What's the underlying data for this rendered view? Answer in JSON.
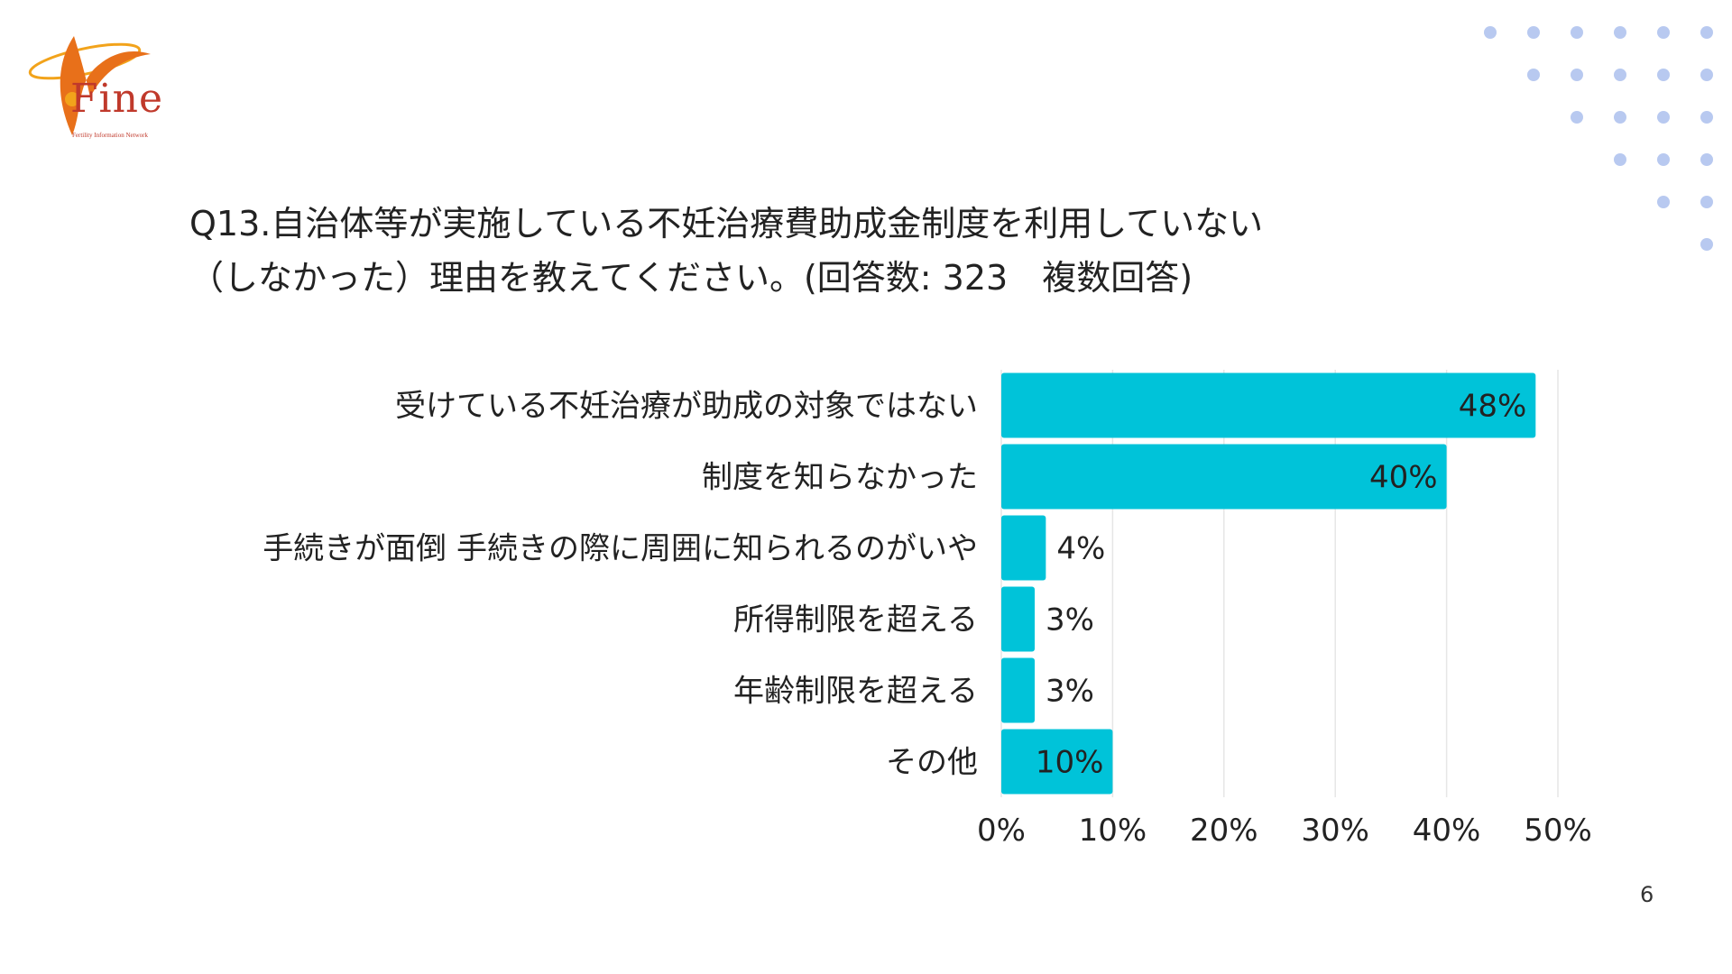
{
  "logo": {
    "text": "Fine",
    "subtext": "Fertility Information Network"
  },
  "title": {
    "line1": "Q13.自治体等が実施している不妊治療費助成金制度を利用していない",
    "line2": "（しなかった）理由を教えてください。(回答数: 323　複数回答)"
  },
  "page_number": "6",
  "colors": {
    "bar": "#00c3d9",
    "grid": "#e6e6e6",
    "dots": "#b8c9f0",
    "logo": "#e8701a"
  },
  "chart_data": {
    "type": "bar",
    "orientation": "horizontal",
    "categories": [
      "受けている不妊治療が助成の対象ではない",
      "制度を知らなかった",
      "手続きが面倒 手続きの際に周囲に知られるのがいや",
      "所得制限を超える",
      "年齢制限を超える",
      "その他"
    ],
    "values": [
      48,
      40,
      4,
      3,
      3,
      10
    ],
    "labels": [
      "48%",
      "40%",
      "4%",
      "3%",
      "3%",
      "10%"
    ],
    "xlim": [
      0,
      50
    ],
    "x_ticks": [
      0,
      10,
      20,
      30,
      40,
      50
    ],
    "x_tick_labels": [
      "0%",
      "10%",
      "20%",
      "30%",
      "40%",
      "50%"
    ],
    "grid": true
  }
}
